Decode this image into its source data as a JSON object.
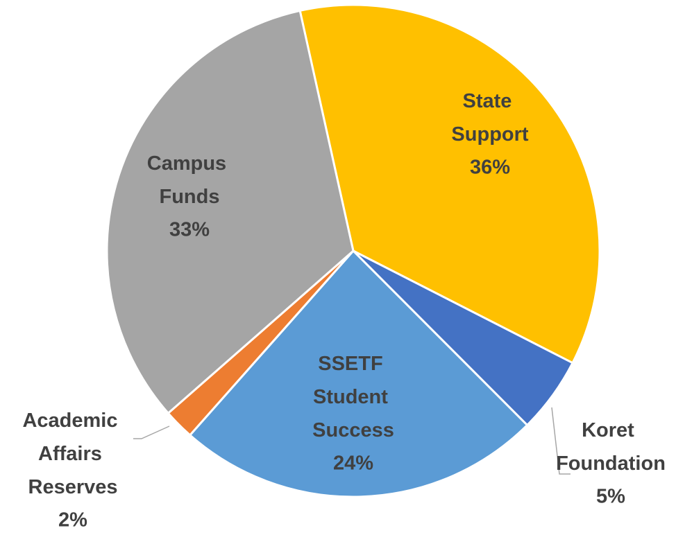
{
  "chart_data": {
    "type": "pie",
    "categories": [
      "State Support",
      "Koret Foundation",
      "SSETF Student Success",
      "Academic Affairs Reserves",
      "Campus Funds"
    ],
    "values": [
      36,
      5,
      24,
      2,
      33
    ],
    "value_labels": [
      "36%",
      "5%",
      "24%",
      "2%",
      "33%"
    ],
    "colors": [
      "#FFC000",
      "#4472C4",
      "#5B9BD5",
      "#ED7D31",
      "#A5A5A5"
    ]
  }
}
